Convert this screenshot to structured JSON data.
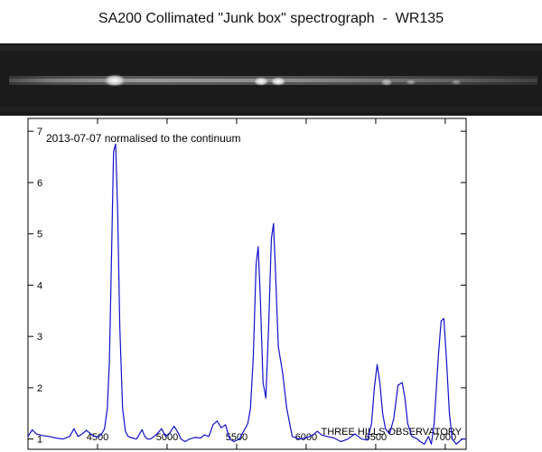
{
  "title": "SA200 Collimated \"Junk box\" spectrograph  -  WR135",
  "chart_data": {
    "type": "line",
    "subtitle": "2013-07-07  normalised to the continuum",
    "annotation": "THREE HILLS OBSERVATORY",
    "xlim": [
      4000,
      7150
    ],
    "ylim": [
      0.8,
      7.25
    ],
    "xticks": [
      4500,
      5000,
      5500,
      6000,
      6500,
      7000
    ],
    "yticks": [
      1,
      2,
      3,
      4,
      5,
      6,
      7
    ],
    "series": [
      {
        "color": "#1010cc",
        "x": [
          4000,
          4030,
          4060,
          4100,
          4150,
          4200,
          4250,
          4300,
          4330,
          4360,
          4390,
          4420,
          4450,
          4480,
          4510,
          4530,
          4550,
          4570,
          4585,
          4600,
          4615,
          4630,
          4645,
          4660,
          4680,
          4700,
          4720,
          4750,
          4780,
          4820,
          4840,
          4860,
          4880,
          4920,
          4960,
          4990,
          5020,
          5050,
          5080,
          5100,
          5130,
          5160,
          5200,
          5240,
          5270,
          5300,
          5330,
          5360,
          5390,
          5420,
          5450,
          5480,
          5520,
          5550,
          5580,
          5600,
          5620,
          5640,
          5655,
          5670,
          5690,
          5710,
          5730,
          5750,
          5765,
          5780,
          5800,
          5830,
          5860,
          5900,
          5950,
          6000,
          6050,
          6080,
          6110,
          6150,
          6200,
          6250,
          6300,
          6350,
          6400,
          6440,
          6470,
          6490,
          6510,
          6530,
          6550,
          6570,
          6600,
          6630,
          6660,
          6690,
          6710,
          6730,
          6760,
          6800,
          6820,
          6850,
          6880,
          6900,
          6920,
          6950,
          6970,
          6990,
          7010,
          7030,
          7050,
          7080,
          7100,
          7120,
          7150
        ],
        "y": [
          1.05,
          1.18,
          1.1,
          1.07,
          1.05,
          1.02,
          1.0,
          1.05,
          1.2,
          1.05,
          1.1,
          1.17,
          1.1,
          1.05,
          1.05,
          1.1,
          1.2,
          1.6,
          2.5,
          4.5,
          6.6,
          6.75,
          5.4,
          3.2,
          1.6,
          1.15,
          1.05,
          1.02,
          1.0,
          1.18,
          1.05,
          1.0,
          1.0,
          1.08,
          1.2,
          1.05,
          1.12,
          1.25,
          1.12,
          1.0,
          0.95,
          1.0,
          1.03,
          1.02,
          1.08,
          1.05,
          1.28,
          1.35,
          1.22,
          1.28,
          1.0,
          0.95,
          1.0,
          1.15,
          1.3,
          1.6,
          2.6,
          4.4,
          4.75,
          3.8,
          2.1,
          1.8,
          3.2,
          4.9,
          5.2,
          4.2,
          2.8,
          2.3,
          1.6,
          1.05,
          1.0,
          1.02,
          1.08,
          1.15,
          1.08,
          1.05,
          1.02,
          0.95,
          1.0,
          1.1,
          1.0,
          0.98,
          1.3,
          2.0,
          2.45,
          2.1,
          1.5,
          1.2,
          1.1,
          1.4,
          2.05,
          2.1,
          1.8,
          1.3,
          1.05,
          1.0,
          0.95,
          0.9,
          1.05,
          0.9,
          1.3,
          2.6,
          3.3,
          3.35,
          2.5,
          1.5,
          1.0,
          0.9,
          0.95,
          1.0,
          1.0
        ]
      }
    ]
  }
}
